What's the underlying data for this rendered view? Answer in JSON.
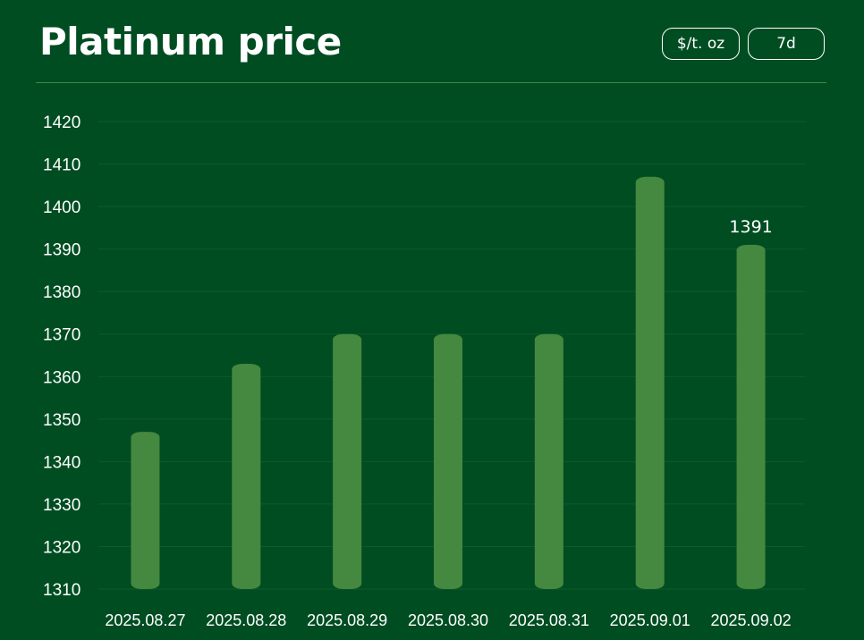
{
  "header": {
    "title": "Platinum price",
    "unit_button": "$/t. oz",
    "range_button": "7d"
  },
  "colors": {
    "background": "#004d22",
    "bar": "#45883f",
    "text": "#ffffff",
    "grid": "#0f5a2c"
  },
  "chart_data": {
    "type": "bar",
    "title": "Platinum price",
    "xlabel": "",
    "ylabel": "",
    "categories": [
      "2025.08.27",
      "2025.08.28",
      "2025.08.29",
      "2025.08.30",
      "2025.08.31",
      "2025.09.01",
      "2025.09.02"
    ],
    "values": [
      1347,
      1363,
      1370,
      1370,
      1370,
      1407,
      1391
    ],
    "ylim": [
      1310,
      1420
    ],
    "yticks": [
      1310,
      1320,
      1330,
      1340,
      1350,
      1360,
      1370,
      1380,
      1390,
      1400,
      1410,
      1420
    ],
    "grid": true,
    "data_labels": [
      {
        "category": "2025.09.02",
        "text": "1391"
      }
    ]
  }
}
